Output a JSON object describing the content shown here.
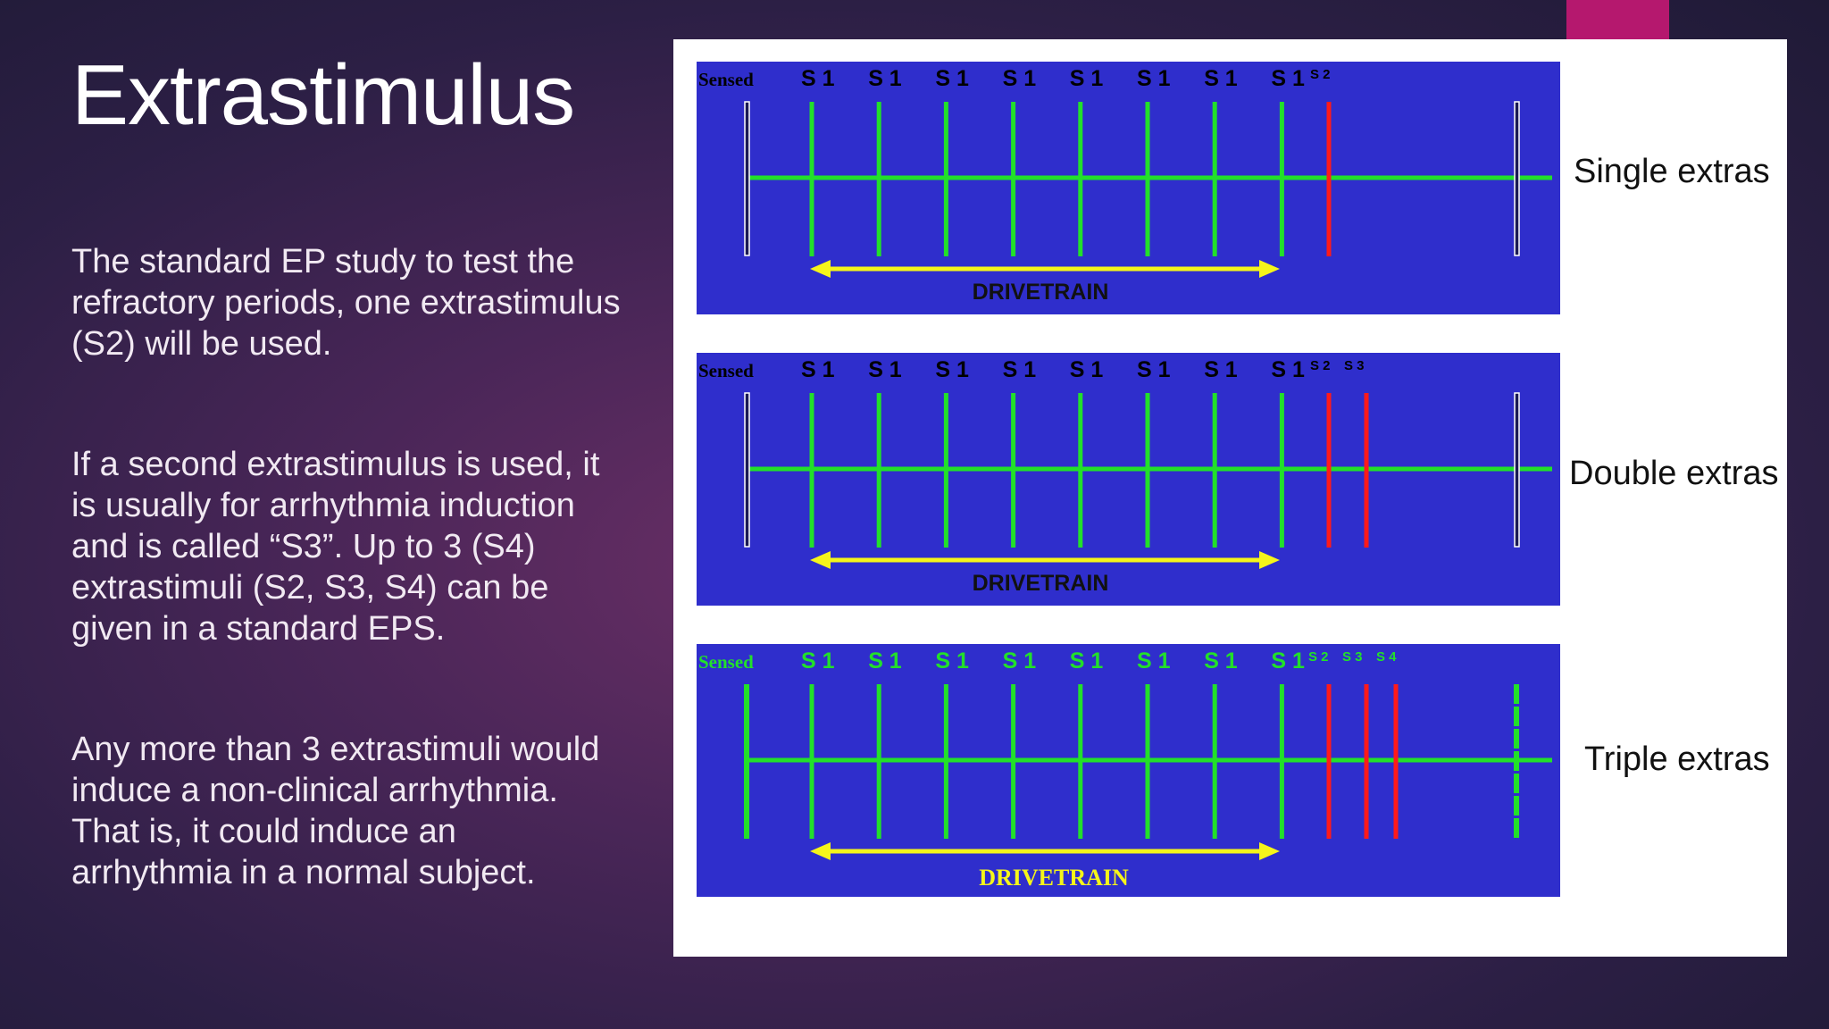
{
  "slide": {
    "title": "Extrastimulus",
    "paragraphs": [
      "The standard EP study to test the refractory periods, one extrastimulus (S2) will be used.",
      "If a second extrastimulus is used, it is usually for arrhythmia induction and is called “S3”. Up to 3 (S4) extrastimuli (S2, S3, S4) can be given in a standard EPS.",
      "Any more than 3 extrastimuli would induce a non-clinical arrhythmia. That is, it could induce an arrhythmia in a normal subject."
    ]
  },
  "colors": {
    "panel_bg": "#2f2ecc",
    "stimulus_green": "#22e02a",
    "extra_red": "#ff1a1a",
    "drivetrain_yellow": "#f5f51a",
    "accent": "#b5186e"
  },
  "diagrams": [
    {
      "name": "single",
      "label": "Single extras",
      "sensed_label": "Sensed",
      "s1_label": "S 1",
      "s1_count": 8,
      "extra_labels": [
        "S 2"
      ],
      "drivetrain_label": "DRIVETRAIN",
      "labels_green": false
    },
    {
      "name": "double",
      "label": "Double extras",
      "sensed_label": "Sensed",
      "s1_label": "S 1",
      "s1_count": 8,
      "extra_labels": [
        "S 2",
        "S 3"
      ],
      "drivetrain_label": "DRIVETRAIN",
      "labels_green": false
    },
    {
      "name": "triple",
      "label": "Triple extras",
      "sensed_label": "Sensed",
      "s1_label": "S 1",
      "s1_count": 8,
      "extra_labels": [
        "S 2",
        "S 3",
        "S 4"
      ],
      "drivetrain_label": "DRIVETRAIN",
      "labels_green": true
    }
  ]
}
